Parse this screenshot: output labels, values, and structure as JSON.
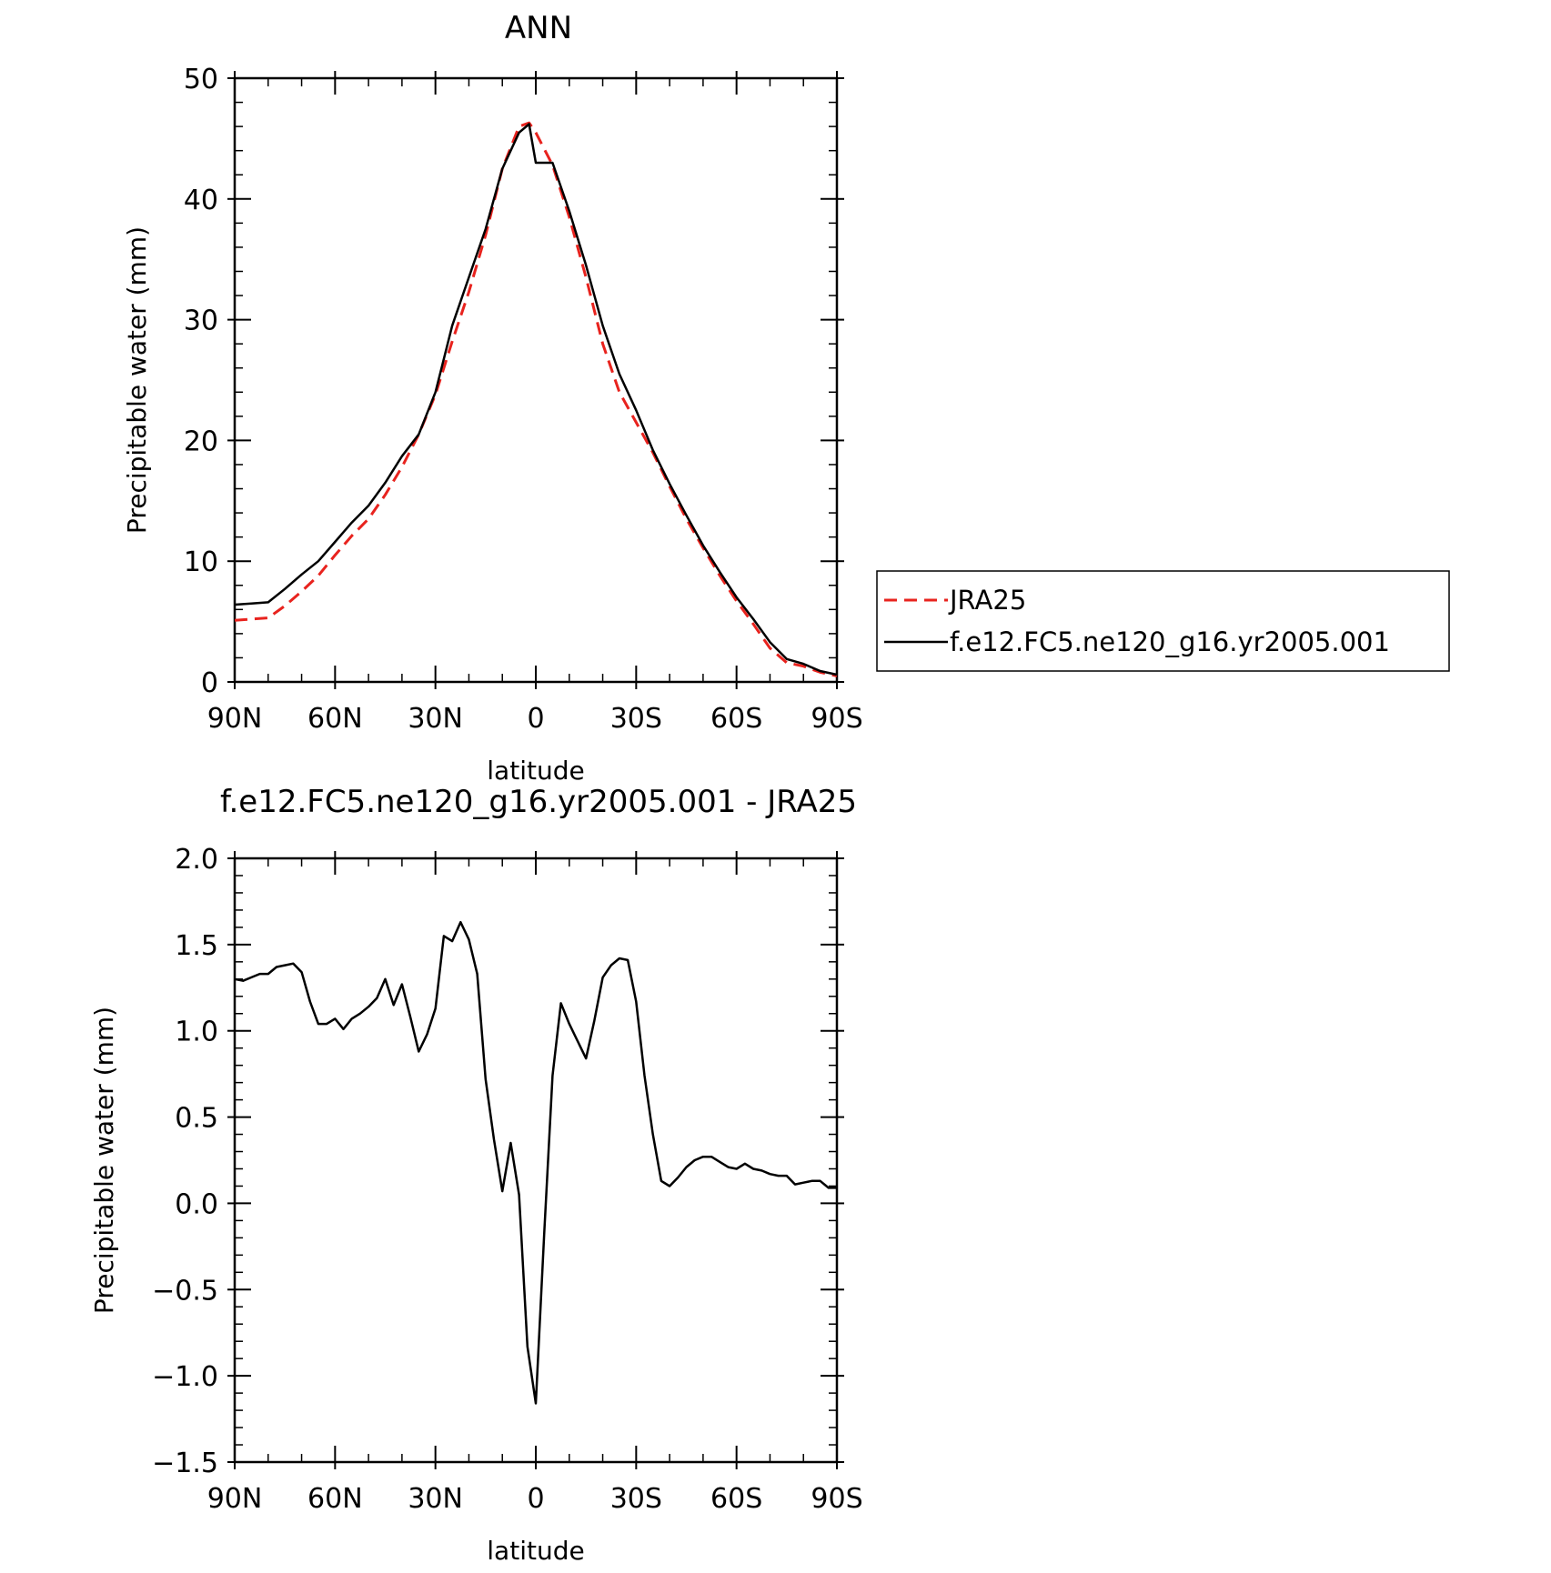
{
  "chart_data": [
    {
      "type": "line",
      "title": "ANN",
      "xlabel": "latitude",
      "ylabel": "Precipitable water (mm)",
      "xlim": [
        90,
        -90
      ],
      "ylim": [
        0,
        50
      ],
      "x_ticks": [
        90,
        60,
        30,
        0,
        -30,
        -60,
        -90
      ],
      "x_tick_labels": [
        "90N",
        "60N",
        "30N",
        "0",
        "30S",
        "60S",
        "90S"
      ],
      "y_ticks": [
        0,
        10,
        20,
        30,
        40,
        50
      ],
      "y_tick_labels": [
        "0",
        "10",
        "20",
        "30",
        "40",
        "50"
      ],
      "grid": false,
      "legend": {
        "placement": "right",
        "entries": [
          "JRA25",
          "f.e12.FC5.ne120_g16.yr2005.001"
        ]
      },
      "series": [
        {
          "name": "JRA25",
          "color": "#e8231e",
          "dash": true,
          "x": [
            90,
            85,
            80,
            75,
            70,
            65,
            60,
            55,
            50,
            45,
            40,
            35,
            30,
            25,
            20,
            15,
            10,
            5,
            2,
            0,
            -5,
            -10,
            -15,
            -20,
            -25,
            -30,
            -35,
            -40,
            -45,
            -50,
            -55,
            -60,
            -65,
            -70,
            -75,
            -80,
            -85,
            -90
          ],
          "y": [
            5.1,
            5.2,
            5.3,
            6.3,
            7.5,
            8.8,
            10.5,
            12.1,
            13.5,
            15.5,
            17.8,
            20.5,
            23.8,
            28.2,
            32.3,
            37.0,
            42.5,
            46.0,
            46.3,
            45.5,
            42.8,
            38.5,
            33.5,
            28.0,
            24.0,
            21.5,
            19.0,
            16.2,
            13.5,
            11.1,
            8.8,
            6.7,
            4.8,
            2.8,
            1.6,
            1.3,
            0.8,
            0.5
          ]
        },
        {
          "name": "f.e12.FC5.ne120_g16.yr2005.001",
          "color": "#000000",
          "dash": false,
          "x": [
            90,
            85,
            80,
            75,
            70,
            65,
            60,
            55,
            50,
            45,
            40,
            35,
            30,
            25,
            20,
            15,
            10,
            5,
            2,
            0,
            -5,
            -10,
            -15,
            -20,
            -25,
            -30,
            -35,
            -40,
            -45,
            -50,
            -55,
            -60,
            -65,
            -70,
            -75,
            -80,
            -85,
            -90
          ],
          "y": [
            6.4,
            6.5,
            6.6,
            7.7,
            8.9,
            10.0,
            11.6,
            13.2,
            14.6,
            16.5,
            18.7,
            20.5,
            24.0,
            29.5,
            33.5,
            37.5,
            42.5,
            45.5,
            46.2,
            43.0,
            43.0,
            39.0,
            34.5,
            29.5,
            25.5,
            22.5,
            19.2,
            16.4,
            13.8,
            11.3,
            9.1,
            7.0,
            5.2,
            3.3,
            1.9,
            1.5,
            0.9,
            0.6
          ]
        }
      ]
    },
    {
      "type": "line",
      "title": "f.e12.FC5.ne120_g16.yr2005.001 - JRA25",
      "xlabel": "latitude",
      "ylabel": "Precipitable water (mm)",
      "xlim": [
        90,
        -90
      ],
      "ylim": [
        -1.5,
        2.0
      ],
      "x_ticks": [
        90,
        60,
        30,
        0,
        -30,
        -60,
        -90
      ],
      "x_tick_labels": [
        "90N",
        "60N",
        "30N",
        "0",
        "30S",
        "60S",
        "90S"
      ],
      "y_ticks": [
        -1.5,
        -1.0,
        -0.5,
        0.0,
        0.5,
        1.0,
        1.5,
        2.0
      ],
      "y_tick_labels": [
        "−1.5",
        "−1.0",
        "−0.5",
        "0.0",
        "0.5",
        "1.0",
        "1.5",
        "2.0"
      ],
      "grid": false,
      "series": [
        {
          "color": "#000000",
          "dash": false,
          "x": [
            90,
            87.5,
            85,
            82.5,
            80,
            77.5,
            75,
            72.5,
            70,
            67.5,
            65,
            62.5,
            60,
            57.5,
            55,
            52.5,
            50,
            47.5,
            45,
            42.5,
            40,
            37.5,
            35,
            32.5,
            30,
            27.5,
            25,
            22.5,
            20,
            17.5,
            15,
            12.5,
            10,
            7.5,
            5,
            2.5,
            0,
            -2.5,
            -5,
            -7.5,
            -10,
            -12.5,
            -15,
            -17.5,
            -20,
            -22.5,
            -25,
            -27.5,
            -30,
            -32.5,
            -35,
            -37.5,
            -40,
            -42.5,
            -45,
            -47.5,
            -50,
            -52.5,
            -55,
            -57.5,
            -60,
            -62.5,
            -65,
            -67.5,
            -70,
            -72.5,
            -75,
            -77.5,
            -80,
            -82.5,
            -85,
            -87.5,
            -90
          ],
          "y": [
            1.3,
            1.29,
            1.31,
            1.33,
            1.33,
            1.37,
            1.38,
            1.39,
            1.34,
            1.17,
            1.04,
            1.04,
            1.07,
            1.01,
            1.07,
            1.1,
            1.14,
            1.19,
            1.3,
            1.15,
            1.27,
            1.08,
            0.88,
            0.98,
            1.13,
            1.55,
            1.52,
            1.63,
            1.53,
            1.33,
            0.72,
            0.37,
            0.07,
            0.35,
            0.05,
            -0.83,
            -1.16,
            -0.18,
            0.74,
            1.16,
            1.04,
            0.94,
            0.84,
            1.06,
            1.31,
            1.38,
            1.42,
            1.41,
            1.17,
            0.74,
            0.4,
            0.13,
            0.1,
            0.15,
            0.21,
            0.25,
            0.27,
            0.27,
            0.24,
            0.21,
            0.2,
            0.23,
            0.2,
            0.19,
            0.17,
            0.16,
            0.16,
            0.11,
            0.12,
            0.13,
            0.13,
            0.09,
            0.09
          ]
        }
      ]
    }
  ]
}
